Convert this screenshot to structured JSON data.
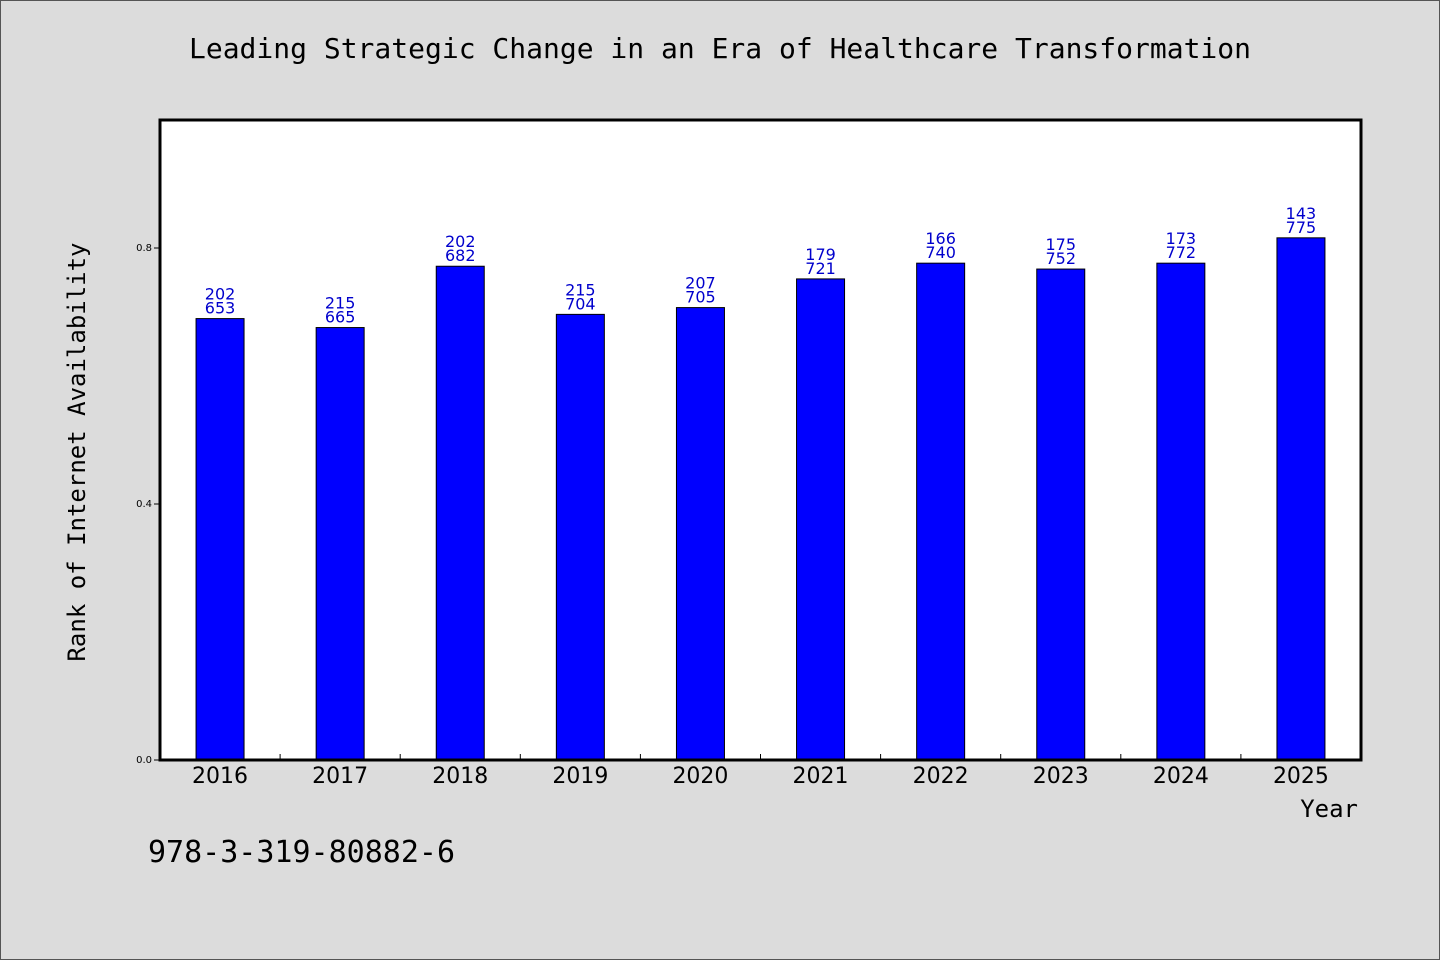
{
  "chart_data": {
    "type": "bar",
    "title": "Leading Strategic Change in an Era of Healthcare Transformation",
    "xlabel": "Year",
    "ylabel": "Rank of Internet Availability",
    "categories": [
      "2016",
      "2017",
      "2018",
      "2019",
      "2020",
      "2021",
      "2022",
      "2023",
      "2024",
      "2025"
    ],
    "values": [
      0.6897,
      0.6757,
      0.7715,
      0.6963,
      0.7069,
      0.7517,
      0.7763,
      0.7671,
      0.7763,
      0.8159
    ],
    "bar_labels_top": [
      "202",
      "215",
      "202",
      "215",
      "207",
      "179",
      "166",
      "175",
      "173",
      "143"
    ],
    "bar_labels_bottom": [
      "653",
      "665",
      "682",
      "704",
      "705",
      "721",
      "740",
      "752",
      "772",
      "775"
    ],
    "ylim": [
      0,
      1.0
    ],
    "yticks": [
      0.0,
      0.4,
      0.8
    ],
    "ytick_labels": [
      "0.0",
      "0.4",
      "0.8"
    ],
    "grid": false,
    "legend": "none",
    "bar_color": "#0000ff",
    "label_color": "#0000cc",
    "background": "#dcdcdc",
    "plot_background": "#ffffff"
  },
  "footer": {
    "isbn": "978-3-319-80882-6"
  }
}
